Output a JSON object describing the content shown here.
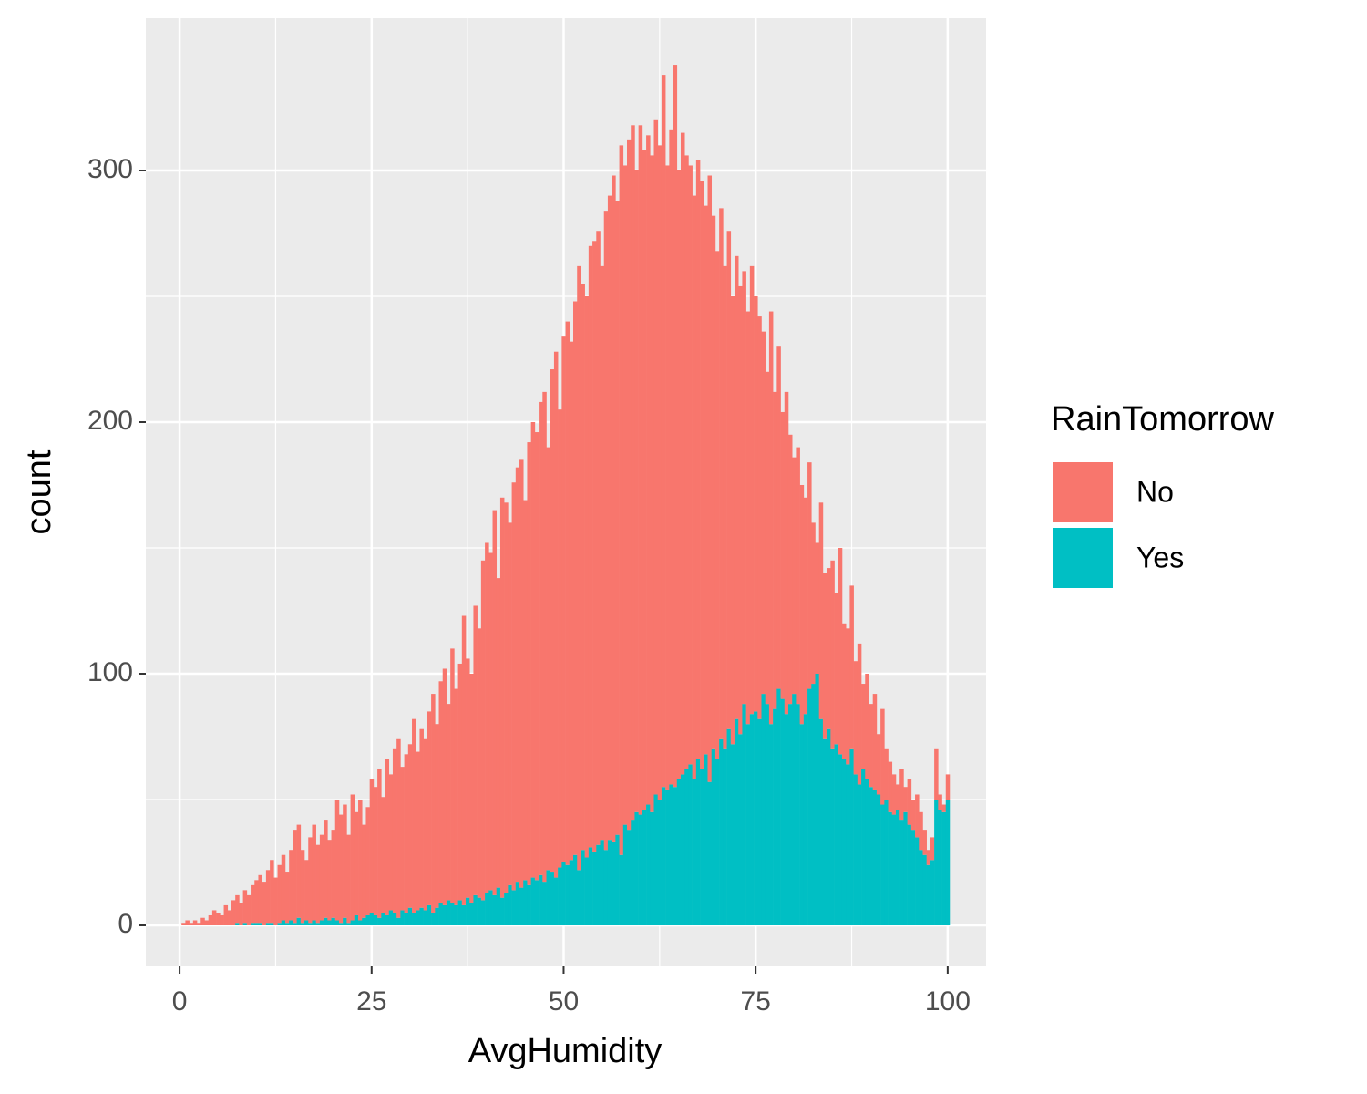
{
  "chart_data": {
    "type": "histogram",
    "x_label": "AvgHumidity",
    "y_label": "count",
    "legend_title": "RainTomorrow",
    "legend_position": "right",
    "grid": true,
    "stacked": true,
    "xlim": [
      -4.4,
      105
    ],
    "ylim": [
      -16.3,
      360.5
    ],
    "xticks": [
      0,
      25,
      50,
      75,
      100
    ],
    "yticks": [
      0,
      100,
      200,
      300
    ],
    "bins": [
      0.25,
      0.75,
      1.25,
      1.75,
      2.25,
      2.75,
      3.25,
      3.75,
      4.25,
      4.75,
      5.25,
      5.75,
      6.25,
      6.75,
      7.25,
      7.75,
      8.25,
      8.75,
      9.25,
      9.75,
      10.25,
      10.75,
      11.25,
      11.75,
      12.25,
      12.75,
      13.25,
      13.75,
      14.25,
      14.75,
      15.25,
      15.75,
      16.25,
      16.75,
      17.25,
      17.75,
      18.25,
      18.75,
      19.25,
      19.75,
      20.25,
      20.75,
      21.25,
      21.75,
      22.25,
      22.75,
      23.25,
      23.75,
      24.25,
      24.75,
      25.25,
      25.75,
      26.25,
      26.75,
      27.25,
      27.75,
      28.25,
      28.75,
      29.25,
      29.75,
      30.25,
      30.75,
      31.25,
      31.75,
      32.25,
      32.75,
      33.25,
      33.75,
      34.25,
      34.75,
      35.25,
      35.75,
      36.25,
      36.75,
      37.25,
      37.75,
      38.25,
      38.75,
      39.25,
      39.75,
      40.25,
      40.75,
      41.25,
      41.75,
      42.25,
      42.75,
      43.25,
      43.75,
      44.25,
      44.75,
      45.25,
      45.75,
      46.25,
      46.75,
      47.25,
      47.75,
      48.25,
      48.75,
      49.25,
      49.75,
      50.25,
      50.75,
      51.25,
      51.75,
      52.25,
      52.75,
      53.25,
      53.75,
      54.25,
      54.75,
      55.25,
      55.75,
      56.25,
      56.75,
      57.25,
      57.75,
      58.25,
      58.75,
      59.25,
      59.75,
      60.25,
      60.75,
      61.25,
      61.75,
      62.25,
      62.75,
      63.25,
      63.75,
      64.25,
      64.75,
      65.25,
      65.75,
      66.25,
      66.75,
      67.25,
      67.75,
      68.25,
      68.75,
      69.25,
      69.75,
      70.25,
      70.75,
      71.25,
      71.75,
      72.25,
      72.75,
      73.25,
      73.75,
      74.25,
      74.75,
      75.25,
      75.75,
      76.25,
      76.75,
      77.25,
      77.75,
      78.25,
      78.75,
      79.25,
      79.75,
      80.25,
      80.75,
      81.25,
      81.75,
      82.25,
      82.75,
      83.25,
      83.75,
      84.25,
      84.75,
      85.25,
      85.75,
      86.25,
      86.75,
      87.25,
      87.75,
      88.25,
      88.75,
      89.25,
      89.75,
      90.25,
      90.75,
      91.25,
      91.75,
      92.25,
      92.75,
      93.25,
      93.75,
      94.25,
      94.75,
      95.25,
      95.75,
      96.25,
      96.75,
      97.25,
      97.75,
      98.25,
      98.75,
      99.25,
      99.75,
      100.25
    ],
    "series": [
      {
        "name": "No",
        "color": "#F8766D",
        "values": [
          1,
          2,
          1,
          2,
          1,
          3,
          2,
          4,
          6,
          5,
          4,
          8,
          6,
          10,
          11,
          9,
          13,
          12,
          15,
          17,
          19,
          17,
          21,
          25,
          19,
          23,
          26,
          20,
          28,
          37,
          37,
          29,
          24,
          34,
          38,
          31,
          34,
          39,
          32,
          35,
          48,
          43,
          45,
          35,
          50,
          41,
          48,
          37,
          43,
          53,
          51,
          59,
          46,
          62,
          54,
          65,
          71,
          57,
          63,
          65,
          77,
          63,
          71,
          68,
          77,
          87,
          73,
          88,
          94,
          78,
          101,
          86,
          94,
          115,
          95,
          91,
          115,
          107,
          135,
          139,
          134,
          153,
          123,
          159,
          155,
          144,
          162,
          165,
          170,
          151,
          176,
          181,
          178,
          188,
          195,
          168,
          200,
          209,
          182,
          209,
          216,
          206,
          220,
          240,
          225,
          223,
          239,
          243,
          244,
          228,
          254,
          256,
          265,
          252,
          282,
          262,
          274,
          276,
          255,
          274,
          262,
          266,
          261,
          268,
          260,
          283,
          248,
          260,
          287,
          242,
          255,
          244,
          238,
          232,
          238,
          234,
          218,
          241,
          212,
          202,
          211,
          192,
          198,
          178,
          184,
          178,
          172,
          164,
          178,
          165,
          160,
          144,
          132,
          164,
          126,
          136,
          114,
          128,
          107,
          94,
          102,
          95,
          86,
          90,
          64,
          52,
          86,
          66,
          64,
          75,
          60,
          82,
          54,
          54,
          65,
          45,
          56,
          34,
          42,
          33,
          38,
          24,
          38,
          20,
          20,
          16,
          10,
          20,
          10,
          18,
          12,
          17,
          15,
          10,
          6,
          9,
          20,
          6,
          3,
          10
        ]
      },
      {
        "name": "Yes",
        "color": "#00BFC4",
        "values": [
          0,
          0,
          0,
          0,
          0,
          0,
          0,
          0,
          0,
          0,
          0,
          0,
          0,
          0,
          1,
          0,
          1,
          0,
          1,
          1,
          1,
          0,
          1,
          1,
          0,
          1,
          2,
          1,
          2,
          1,
          3,
          1,
          2,
          1,
          2,
          1,
          2,
          3,
          2,
          3,
          2,
          1,
          3,
          1,
          2,
          4,
          2,
          3,
          4,
          5,
          4,
          3,
          5,
          4,
          6,
          5,
          3,
          6,
          5,
          7,
          5,
          6,
          7,
          6,
          8,
          5,
          7,
          9,
          8,
          10,
          9,
          8,
          10,
          8,
          11,
          9,
          12,
          11,
          10,
          13,
          14,
          12,
          15,
          11,
          13,
          16,
          14,
          17,
          15,
          18,
          16,
          19,
          18,
          20,
          17,
          22,
          21,
          19,
          23,
          25,
          24,
          26,
          28,
          22,
          30,
          27,
          31,
          29,
          32,
          34,
          30,
          34,
          33,
          36,
          28,
          40,
          38,
          42,
          45,
          44,
          46,
          48,
          45,
          52,
          50,
          55,
          54,
          56,
          55,
          58,
          60,
          62,
          64,
          58,
          66,
          62,
          68,
          57,
          70,
          66,
          74,
          70,
          78,
          72,
          82,
          76,
          88,
          80,
          84,
          85,
          82,
          92,
          88,
          80,
          86,
          94,
          90,
          84,
          88,
          92,
          88,
          80,
          84,
          94,
          96,
          100,
          82,
          74,
          78,
          70,
          72,
          68,
          66,
          64,
          70,
          60,
          56,
          62,
          58,
          55,
          54,
          52,
          48,
          50,
          45,
          44,
          46,
          42,
          45,
          40,
          38,
          35,
          30,
          28,
          24,
          26,
          50,
          46,
          45,
          50
        ]
      }
    ]
  }
}
